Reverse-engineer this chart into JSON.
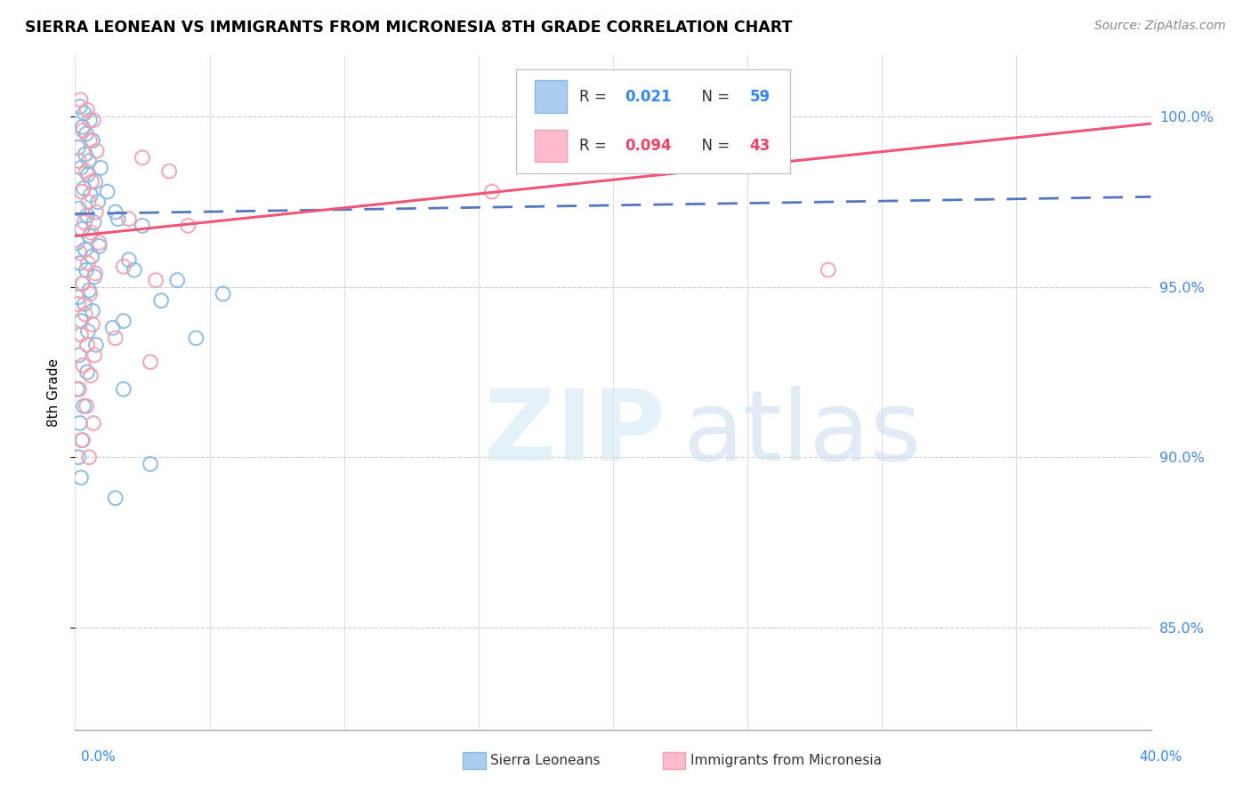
{
  "title": "SIERRA LEONEAN VS IMMIGRANTS FROM MICRONESIA 8TH GRADE CORRELATION CHART",
  "source": "Source: ZipAtlas.com",
  "ylabel": "8th Grade",
  "ytick_labels": [
    "85.0%",
    "90.0%",
    "95.0%",
    "100.0%"
  ],
  "ytick_values": [
    85.0,
    90.0,
    95.0,
    100.0
  ],
  "xlim": [
    0.0,
    40.0
  ],
  "ylim": [
    82.0,
    101.8
  ],
  "legend_blue_label": "Sierra Leoneans",
  "legend_pink_label": "Immigrants from Micronesia",
  "blue_color": "#8BB8E0",
  "pink_color": "#F0A0B0",
  "blue_fill_color": "#AACCEE",
  "pink_fill_color": "#FFBBCC",
  "blue_line_color": "#5577BB",
  "pink_line_color": "#EE5577",
  "blue_points": [
    [
      0.18,
      100.3
    ],
    [
      0.35,
      100.1
    ],
    [
      0.55,
      99.9
    ],
    [
      0.28,
      99.7
    ],
    [
      0.42,
      99.5
    ],
    [
      0.65,
      99.3
    ],
    [
      0.12,
      99.1
    ],
    [
      0.38,
      98.9
    ],
    [
      0.52,
      98.7
    ],
    [
      0.22,
      98.5
    ],
    [
      0.48,
      98.3
    ],
    [
      0.75,
      98.1
    ],
    [
      0.32,
      97.9
    ],
    [
      0.58,
      97.7
    ],
    [
      0.85,
      97.5
    ],
    [
      0.15,
      97.3
    ],
    [
      0.45,
      97.1
    ],
    [
      0.7,
      96.9
    ],
    [
      0.25,
      96.7
    ],
    [
      0.55,
      96.5
    ],
    [
      0.08,
      96.3
    ],
    [
      0.38,
      96.1
    ],
    [
      0.62,
      95.9
    ],
    [
      0.18,
      95.7
    ],
    [
      0.42,
      95.5
    ],
    [
      0.72,
      95.3
    ],
    [
      0.28,
      95.1
    ],
    [
      0.52,
      94.9
    ],
    [
      0.12,
      94.7
    ],
    [
      0.35,
      94.5
    ],
    [
      0.65,
      94.3
    ],
    [
      0.22,
      94.0
    ],
    [
      0.48,
      93.7
    ],
    [
      0.78,
      93.3
    ],
    [
      0.15,
      93.0
    ],
    [
      0.45,
      92.5
    ],
    [
      0.08,
      92.0
    ],
    [
      0.32,
      91.5
    ],
    [
      0.18,
      91.0
    ],
    [
      0.28,
      90.5
    ],
    [
      0.12,
      90.0
    ],
    [
      0.22,
      89.4
    ],
    [
      2.2,
      95.5
    ],
    [
      3.8,
      95.2
    ],
    [
      5.5,
      94.8
    ],
    [
      1.8,
      94.0
    ],
    [
      4.5,
      93.5
    ],
    [
      2.5,
      96.8
    ],
    [
      1.5,
      97.2
    ],
    [
      0.95,
      98.5
    ],
    [
      1.2,
      97.8
    ],
    [
      1.6,
      97.0
    ],
    [
      0.9,
      96.2
    ],
    [
      2.0,
      95.8
    ],
    [
      3.2,
      94.6
    ],
    [
      1.4,
      93.8
    ],
    [
      1.8,
      92.0
    ],
    [
      2.8,
      89.8
    ],
    [
      1.5,
      88.8
    ]
  ],
  "pink_points": [
    [
      0.2,
      100.5
    ],
    [
      0.45,
      100.2
    ],
    [
      0.68,
      99.9
    ],
    [
      0.3,
      99.6
    ],
    [
      0.55,
      99.3
    ],
    [
      0.8,
      99.0
    ],
    [
      0.15,
      98.7
    ],
    [
      0.42,
      98.4
    ],
    [
      0.62,
      98.1
    ],
    [
      0.25,
      97.8
    ],
    [
      0.5,
      97.5
    ],
    [
      0.78,
      97.2
    ],
    [
      0.35,
      96.9
    ],
    [
      0.6,
      96.6
    ],
    [
      0.9,
      96.3
    ],
    [
      0.18,
      96.0
    ],
    [
      0.48,
      95.7
    ],
    [
      0.75,
      95.4
    ],
    [
      0.28,
      95.1
    ],
    [
      0.55,
      94.8
    ],
    [
      0.12,
      94.5
    ],
    [
      0.38,
      94.2
    ],
    [
      0.65,
      93.9
    ],
    [
      0.22,
      93.6
    ],
    [
      0.45,
      93.3
    ],
    [
      0.72,
      93.0
    ],
    [
      0.3,
      92.7
    ],
    [
      0.58,
      92.4
    ],
    [
      0.15,
      92.0
    ],
    [
      0.42,
      91.5
    ],
    [
      0.68,
      91.0
    ],
    [
      0.25,
      90.5
    ],
    [
      0.52,
      90.0
    ],
    [
      2.5,
      98.8
    ],
    [
      3.5,
      98.4
    ],
    [
      2.0,
      97.0
    ],
    [
      4.2,
      96.8
    ],
    [
      1.8,
      95.6
    ],
    [
      3.0,
      95.2
    ],
    [
      1.5,
      93.5
    ],
    [
      2.8,
      92.8
    ],
    [
      28.0,
      95.5
    ],
    [
      15.5,
      97.8
    ]
  ],
  "blue_trend_x": [
    0.0,
    40.0
  ],
  "blue_trend_y": [
    97.15,
    97.65
  ],
  "pink_trend_x": [
    0.0,
    40.0
  ],
  "pink_trend_y": [
    96.5,
    99.8
  ]
}
